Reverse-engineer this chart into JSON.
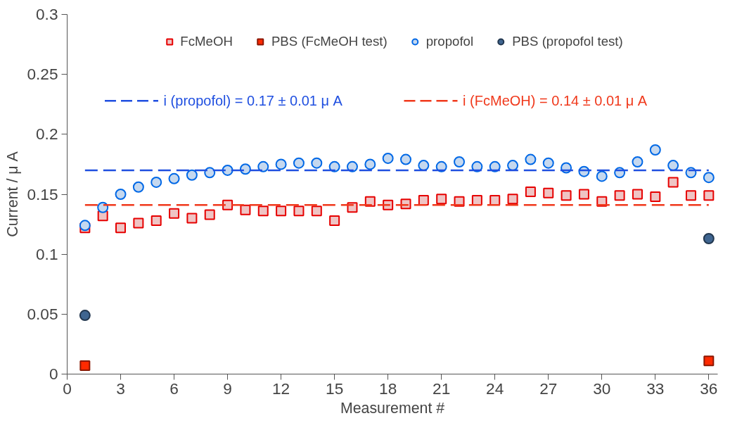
{
  "chart_data": {
    "type": "scatter",
    "xlabel": "Measurement #",
    "ylabel": "Current / μ A",
    "x": [
      1,
      2,
      3,
      4,
      5,
      6,
      7,
      8,
      9,
      10,
      11,
      12,
      13,
      14,
      15,
      16,
      17,
      18,
      19,
      20,
      21,
      22,
      23,
      24,
      25,
      26,
      27,
      28,
      29,
      30,
      31,
      32,
      33,
      34,
      35,
      36
    ],
    "series": [
      {
        "name": "FcMeOH",
        "color": "#efc4c4",
        "marker": "square",
        "values": [
          0.122,
          0.132,
          0.122,
          0.126,
          0.128,
          0.134,
          0.13,
          0.133,
          0.141,
          0.137,
          0.136,
          0.136,
          0.136,
          0.136,
          0.128,
          0.139,
          0.144,
          0.141,
          0.142,
          0.145,
          0.146,
          0.144,
          0.145,
          0.145,
          0.146,
          0.152,
          0.151,
          0.149,
          0.15,
          0.144,
          0.149,
          0.15,
          0.148,
          0.16,
          0.149,
          0.149
        ]
      },
      {
        "name": "PBS (FcMeOH test)",
        "color": "#ff2a00",
        "marker": "square",
        "values": [
          0.007,
          null,
          null,
          null,
          null,
          null,
          null,
          null,
          null,
          null,
          null,
          null,
          null,
          null,
          null,
          null,
          null,
          null,
          null,
          null,
          null,
          null,
          null,
          null,
          null,
          null,
          null,
          null,
          null,
          null,
          null,
          null,
          null,
          null,
          null,
          0.011
        ]
      },
      {
        "name": "propofol",
        "color": "#c5d8ef",
        "marker": "circle",
        "values": [
          0.124,
          0.139,
          0.15,
          0.156,
          0.16,
          0.163,
          0.166,
          0.168,
          0.17,
          0.171,
          0.173,
          0.175,
          0.176,
          0.176,
          0.173,
          0.173,
          0.175,
          0.18,
          0.179,
          0.174,
          0.173,
          0.177,
          0.173,
          0.173,
          0.174,
          0.179,
          0.176,
          0.172,
          0.169,
          0.165,
          0.168,
          0.177,
          0.187,
          0.174,
          0.168,
          0.164
        ]
      },
      {
        "name": "PBS (propofol test)",
        "color": "#3f6590",
        "marker": "circle",
        "values": [
          0.049,
          null,
          null,
          null,
          null,
          null,
          null,
          null,
          null,
          null,
          null,
          null,
          null,
          null,
          null,
          null,
          null,
          null,
          null,
          null,
          null,
          null,
          null,
          null,
          null,
          null,
          null,
          null,
          null,
          null,
          null,
          null,
          null,
          null,
          null,
          0.113
        ]
      }
    ],
    "ref_lines": [
      {
        "axis": "y",
        "value": 0.17,
        "label": "i (propofol) = 0.17 ± 0.01  μ A",
        "color": "#1f4fe0",
        "line_style": "dashed"
      },
      {
        "axis": "y",
        "value": 0.141,
        "label": "i (FcMeOH) = 0.14 ± 0.01  μ A",
        "color": "#f0391c",
        "line_style": "dashed"
      }
    ],
    "xlim": [
      0,
      36.5
    ],
    "ylim": [
      0,
      0.3
    ],
    "xticks": [
      0,
      3,
      6,
      9,
      12,
      15,
      18,
      21,
      24,
      27,
      30,
      33,
      36
    ],
    "yticks": [
      0,
      0.05,
      0.1,
      0.15,
      0.2,
      0.25,
      0.3
    ],
    "grid": false,
    "legend": "top"
  }
}
